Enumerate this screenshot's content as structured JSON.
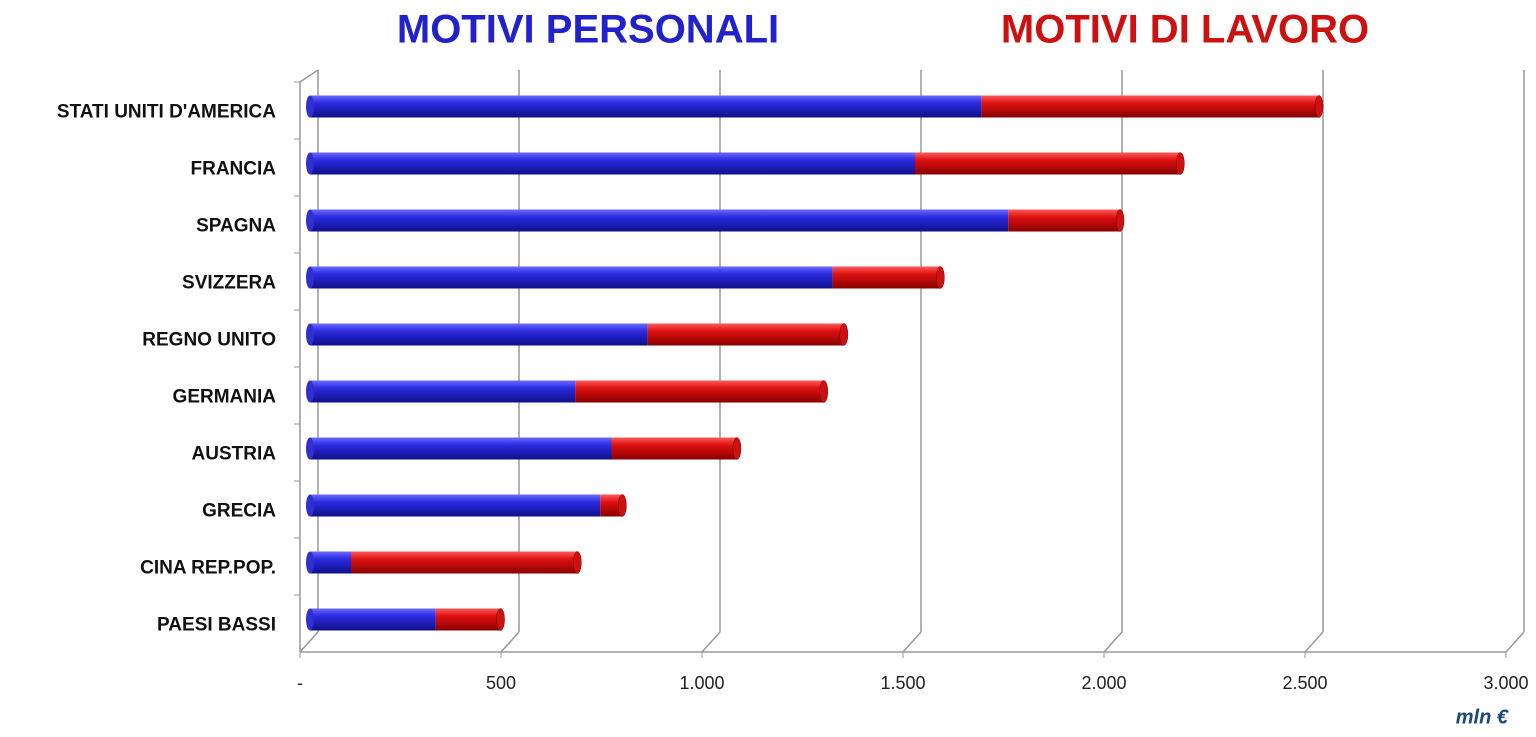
{
  "chart_data": {
    "type": "bar",
    "orientation": "horizontal",
    "stacked": true,
    "categories": [
      "STATI UNITI D'AMERICA",
      "FRANCIA",
      "SPAGNA",
      "SVIZZERA",
      "REGNO UNITO",
      "GERMANIA",
      "AUSTRIA",
      "GRECIA",
      "CINA REP.POP.",
      "PAESI BASSI"
    ],
    "series": [
      {
        "name": "MOTIVI PERSONALI",
        "color": "#2222cc",
        "values": [
          1670,
          1505,
          1737,
          1300,
          840,
          660,
          750,
          722,
          102,
          313
        ]
      },
      {
        "name": "MOTIVI DI LAVORO",
        "color": "#cc1111",
        "values": [
          840,
          660,
          278,
          268,
          488,
          618,
          312,
          55,
          563,
          161
        ]
      }
    ],
    "xlim": [
      0,
      3000
    ],
    "xticks": [
      {
        "value": 0,
        "label": "-"
      },
      500,
      {
        "value": 1000,
        "label": "1.000"
      },
      {
        "value": 1500,
        "label": "1.500"
      },
      {
        "value": 2000,
        "label": "2.000"
      },
      {
        "value": 2500,
        "label": "2.500"
      },
      {
        "value": 3000,
        "label": "3.000"
      }
    ],
    "x_label": "mln €",
    "grid": true
  }
}
